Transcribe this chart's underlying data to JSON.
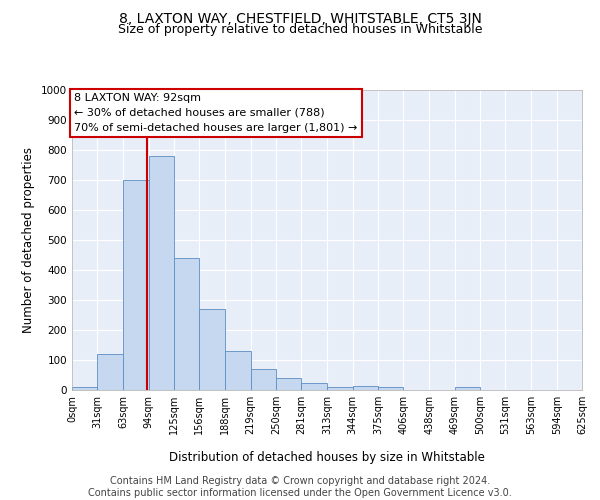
{
  "title": "8, LAXTON WAY, CHESTFIELD, WHITSTABLE, CT5 3JN",
  "subtitle": "Size of property relative to detached houses in Whitstable",
  "xlabel": "Distribution of detached houses by size in Whitstable",
  "ylabel": "Number of detached properties",
  "bar_color": "#c5d8f0",
  "bar_edge_color": "#5b8ec4",
  "background_color": "#e8eef8",
  "grid_color": "#ffffff",
  "annotation_line_color": "#cc0000",
  "annotation_property_size": 92,
  "annotation_text_line1": "8 LAXTON WAY: 92sqm",
  "annotation_text_line2": "← 30% of detached houses are smaller (788)",
  "annotation_text_line3": "70% of semi-detached houses are larger (1,801) →",
  "annotation_box_color": "#ffffff",
  "annotation_box_edge_color": "#cc0000",
  "ylim": [
    0,
    1000
  ],
  "yticks": [
    0,
    100,
    200,
    300,
    400,
    500,
    600,
    700,
    800,
    900,
    1000
  ],
  "bin_edges": [
    0,
    31,
    63,
    94,
    125,
    156,
    188,
    219,
    250,
    281,
    313,
    344,
    375,
    406,
    438,
    469,
    500,
    531,
    563,
    594,
    625
  ],
  "bar_heights": [
    10,
    120,
    700,
    780,
    440,
    270,
    130,
    70,
    40,
    25,
    10,
    12,
    10,
    0,
    0,
    10,
    0,
    0,
    0,
    0
  ],
  "footer_line1": "Contains HM Land Registry data © Crown copyright and database right 2024.",
  "footer_line2": "Contains public sector information licensed under the Open Government Licence v3.0.",
  "title_fontsize": 10,
  "subtitle_fontsize": 9,
  "tick_label_fontsize": 7,
  "axis_label_fontsize": 8.5,
  "footer_fontsize": 7
}
